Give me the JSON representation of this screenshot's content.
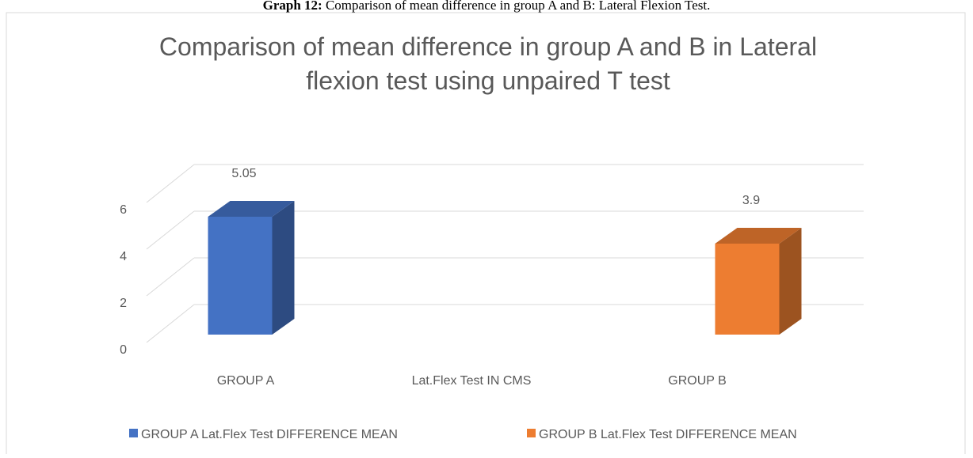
{
  "caption_label": "Graph 12:",
  "caption_text": "Comparison of mean difference in group A and B: Lateral Flexion Test.",
  "chart_data": {
    "type": "bar3d",
    "title": [
      "Comparison of mean difference in group A and B in Lateral",
      "flexion test using unpaired T test"
    ],
    "categories": [
      "GROUP A",
      "Lat.Flex Test IN CMS",
      "GROUP B"
    ],
    "series": [
      {
        "name": "GROUP A Lat.Flex Test DIFFERENCE MEAN",
        "color": "#4472c4",
        "values": [
          5.05,
          null,
          null
        ]
      },
      {
        "name": "GROUP B Lat.Flex Test DIFFERENCE MEAN",
        "color": "#ed7d31",
        "values": [
          null,
          null,
          3.9
        ]
      }
    ],
    "ylim": [
      0,
      6
    ],
    "yticks": [
      0,
      2,
      4,
      6
    ],
    "grid": true,
    "legend": "bottom"
  }
}
